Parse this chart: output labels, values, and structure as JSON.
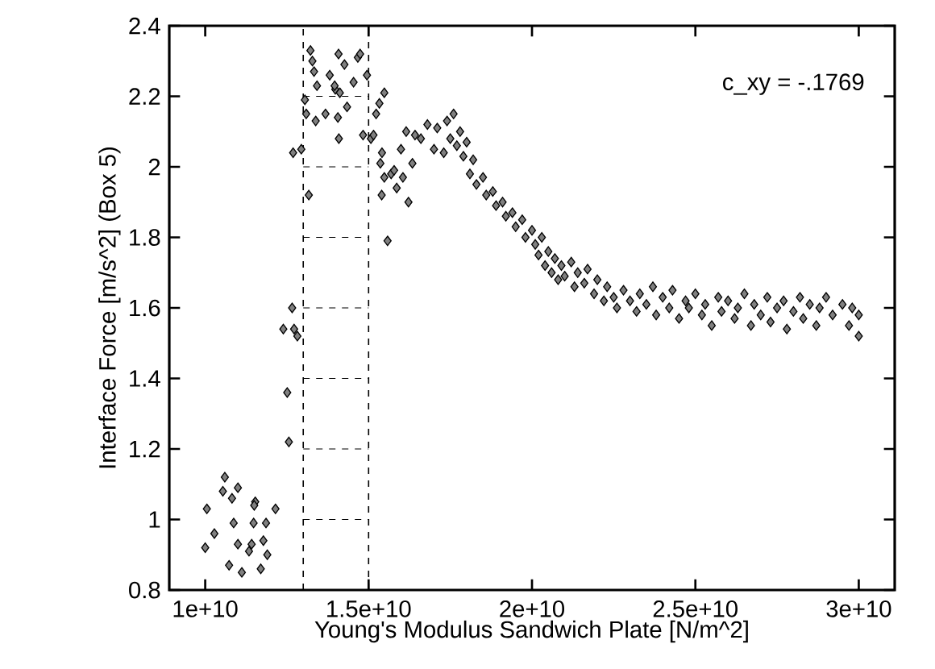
{
  "chart_data": {
    "type": "scatter",
    "xlabel": "Young's Modulus Sandwich Plate [N/m^2]",
    "ylabel": "Interface Force [m/s^2] (Box 5)",
    "annotations": [
      "c_xy =  -.1769"
    ],
    "marker": "diamond",
    "xlim": [
      8900000000.0,
      31100000000.0
    ],
    "ylim": [
      0.8,
      2.4
    ],
    "xticks": [
      {
        "value": 10000000000.0,
        "label": "1e+10"
      },
      {
        "value": 15000000000.0,
        "label": "1.5e+10"
      },
      {
        "value": 20000000000.0,
        "label": "2e+10"
      },
      {
        "value": 25000000000.0,
        "label": "2.5e+10"
      },
      {
        "value": 30000000000.0,
        "label": "3e+10"
      }
    ],
    "yticks": [
      0.8,
      1,
      1.2,
      1.4,
      1.6,
      1.8,
      2,
      2.2,
      2.4
    ],
    "line_style": "dashed",
    "ref_lines": [
      {
        "axis": "x",
        "value": 13000000000.0,
        "color": "#000000",
        "line_style": "dashed"
      },
      {
        "axis": "x",
        "value": 15000000000.0,
        "color": "#000000",
        "line_style": "dashed"
      }
    ],
    "series": [
      {
        "type": "line",
        "marker": "none",
        "color": "#000000",
        "x": [
          13000000000.0,
          15000000000.0
        ],
        "values": [
          1,
          1
        ]
      },
      {
        "type": "line",
        "marker": "none",
        "color": "#000000",
        "x": [
          13000000000.0,
          15000000000.0
        ],
        "values": [
          1.2,
          1.2
        ]
      },
      {
        "type": "line",
        "marker": "none",
        "color": "#000000",
        "x": [
          13000000000.0,
          15000000000.0
        ],
        "values": [
          1.4,
          1.4
        ]
      },
      {
        "type": "line",
        "marker": "none",
        "color": "#000000",
        "x": [
          13000000000.0,
          15000000000.0
        ],
        "values": [
          1.6,
          1.6
        ]
      },
      {
        "type": "line",
        "marker": "none",
        "color": "#000000",
        "x": [
          13000000000.0,
          15000000000.0
        ],
        "values": [
          1.8,
          1.8
        ]
      },
      {
        "type": "line",
        "marker": "none",
        "color": "#000000",
        "x": [
          13000000000.0,
          15000000000.0
        ],
        "values": [
          2,
          2
        ]
      },
      {
        "type": "line",
        "marker": "none",
        "color": "#000000",
        "x": [
          13000000000.0,
          15000000000.0
        ],
        "values": [
          2.2,
          2.2
        ]
      },
      {
        "color": "#808080",
        "x": [
          10000000000.0,
          10050000000.0,
          10280000000.0,
          10540000000.0,
          10600000000.0,
          10730000000.0,
          10820000000.0,
          10870000000.0,
          11000000000.0,
          11000000000.0,
          11120000000.0,
          11340000000.0,
          11420000000.0,
          11530000000.0,
          11480000000.0,
          11500000000.0,
          11700000000.0,
          11780000000.0,
          11860000000.0,
          11900000000.0,
          12150000000.0,
          12390000000.0,
          12510000000.0,
          12560000000.0,
          12660000000.0,
          12720000000.0,
          12820000000.0,
          12690000000.0,
          12940000000.0,
          13050000000.0,
          13090000000.0,
          13170000000.0,
          13220000000.0,
          13280000000.0,
          13330000000.0,
          13380000000.0,
          13420000000.0,
          13680000000.0,
          13810000000.0,
          13980000000.0,
          13960000000.0,
          14080000000.0,
          14060000000.0,
          14120000000.0,
          14090000000.0,
          14260000000.0,
          14340000000.0,
          14540000000.0,
          14670000000.0,
          14740000000.0,
          14830000000.0,
          14950000000.0,
          15070000000.0,
          15150000000.0,
          15230000000.0,
          15330000000.0,
          15410000000.0,
          15480000000.0,
          15360000000.0,
          15400000000.0,
          15480000000.0,
          15580000000.0,
          15690000000.0,
          15780000000.0,
          15860000000.0,
          15990000000.0,
          16050000000.0,
          16150000000.0,
          16220000000.0,
          16340000000.0,
          16420000000.0,
          16600000000.0,
          16800000000.0,
          17000000000.0,
          17100000000.0,
          17300000000.0,
          17400000000.0,
          17500000000.0,
          17600000000.0,
          17700000000.0,
          17800000000.0,
          17900000000.0,
          18000000000.0,
          18100000000.0,
          18200000000.0,
          18300000000.0,
          18500000000.0,
          18600000000.0,
          18800000000.0,
          18900000000.0,
          19100000000.0,
          19200000000.0,
          19400000000.0,
          19500000000.0,
          19700000000.0,
          19800000000.0,
          20000000000.0,
          20100000000.0,
          20200000000.0,
          20300000000.0,
          20400000000.0,
          20500000000.0,
          20600000000.0,
          20700000000.0,
          20800000000.0,
          20900000000.0,
          21000000000.0,
          21200000000.0,
          21300000000.0,
          21400000000.0,
          21600000000.0,
          21700000000.0,
          21900000000.0,
          22000000000.0,
          22200000000.0,
          22300000000.0,
          22500000000.0,
          22600000000.0,
          22800000000.0,
          23000000000.0,
          23200000000.0,
          23300000000.0,
          23500000000.0,
          23700000000.0,
          23800000000.0,
          24000000000.0,
          24200000000.0,
          24300000000.0,
          24500000000.0,
          24700000000.0,
          24800000000.0,
          25000000000.0,
          25200000000.0,
          25300000000.0,
          25500000000.0,
          25700000000.0,
          25800000000.0,
          26000000000.0,
          26200000000.0,
          26300000000.0,
          26500000000.0,
          26700000000.0,
          26800000000.0,
          27000000000.0,
          27200000000.0,
          27300000000.0,
          27500000000.0,
          27700000000.0,
          27800000000.0,
          28000000000.0,
          28200000000.0,
          28300000000.0,
          28500000000.0,
          28700000000.0,
          28800000000.0,
          29000000000.0,
          29200000000.0,
          29500000000.0,
          29700000000.0,
          29800000000.0,
          30000000000.0,
          30000000000.0
        ],
        "values": [
          0.92,
          1.03,
          0.96,
          1.08,
          1.12,
          0.87,
          1.06,
          0.99,
          1.09,
          0.93,
          0.85,
          0.91,
          0.93,
          1.05,
          0.99,
          1.04,
          0.86,
          0.94,
          0.99,
          0.9,
          1.03,
          1.54,
          1.36,
          1.22,
          1.6,
          1.54,
          1.52,
          2.04,
          2.05,
          2.19,
          2.15,
          1.92,
          2.33,
          2.3,
          2.27,
          2.13,
          2.23,
          2.15,
          2.26,
          2.22,
          2.23,
          2.32,
          2.14,
          2.21,
          2.08,
          2.29,
          2.17,
          2.24,
          2.31,
          2.32,
          2.09,
          2.26,
          2.08,
          2.09,
          2.15,
          2.18,
          2.04,
          2.21,
          2.01,
          1.92,
          1.97,
          1.79,
          1.98,
          1.99,
          1.94,
          2.05,
          1.97,
          2.1,
          1.9,
          2.01,
          2.09,
          2.08,
          2.12,
          2.05,
          2.11,
          2.04,
          2.13,
          2.08,
          2.15,
          2.06,
          2.1,
          2.03,
          2.07,
          1.98,
          2.02,
          1.95,
          1.97,
          1.92,
          1.93,
          1.89,
          1.9,
          1.86,
          1.87,
          1.83,
          1.85,
          1.8,
          1.82,
          1.78,
          1.75,
          1.8,
          1.72,
          1.76,
          1.7,
          1.74,
          1.68,
          1.72,
          1.69,
          1.73,
          1.66,
          1.7,
          1.67,
          1.71,
          1.64,
          1.68,
          1.62,
          1.66,
          1.63,
          1.6,
          1.65,
          1.62,
          1.59,
          1.64,
          1.61,
          1.66,
          1.58,
          1.63,
          1.6,
          1.65,
          1.57,
          1.62,
          1.6,
          1.64,
          1.58,
          1.61,
          1.55,
          1.63,
          1.59,
          1.62,
          1.57,
          1.6,
          1.64,
          1.55,
          1.61,
          1.58,
          1.63,
          1.56,
          1.6,
          1.62,
          1.54,
          1.59,
          1.63,
          1.57,
          1.61,
          1.55,
          1.6,
          1.63,
          1.58,
          1.61,
          1.55,
          1.6,
          1.52,
          1.58
        ]
      }
    ]
  }
}
